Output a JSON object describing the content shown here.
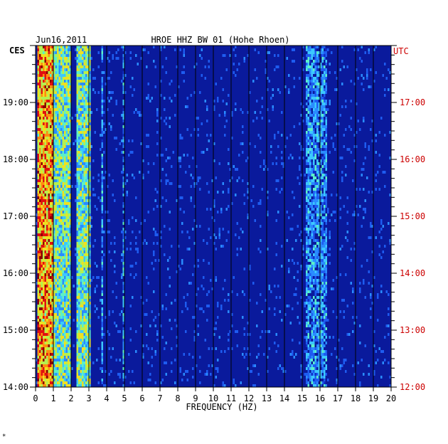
{
  "chart_data": {
    "type": "heatmap",
    "title": "HROE HHZ BW 01 (Hohe Rhoen)",
    "date": "Jun16,2011",
    "xlabel": "FREQUENCY (HZ)",
    "left_axis_label": "CES",
    "right_axis_label": "UTC",
    "xlim": [
      0,
      20
    ],
    "x_ticks": [
      "0",
      "1",
      "2",
      "3",
      "4",
      "5",
      "6",
      "7",
      "8",
      "9",
      "10",
      "11",
      "12",
      "13",
      "14",
      "15",
      "16",
      "17",
      "18",
      "19",
      "20"
    ],
    "left_ticks": [
      "14:00",
      "15:00",
      "16:00",
      "17:00",
      "18:00",
      "19:00"
    ],
    "right_ticks": [
      "12:00",
      "13:00",
      "14:00",
      "15:00",
      "16:00",
      "17:00"
    ],
    "y_range_hours_utc": [
      12,
      18
    ],
    "colors": {
      "background": "#0a1a9c",
      "grid": "#000000",
      "utc_text": "#cc0000",
      "axis_text": "#000000"
    },
    "energy_bands_hz": [
      {
        "from": 0.1,
        "to": 1.0,
        "level": "high"
      },
      {
        "from": 1.0,
        "to": 2.0,
        "level": "medium"
      },
      {
        "from": 2.3,
        "to": 3.1,
        "level": "medium"
      },
      {
        "from": 3.7,
        "to": 3.8,
        "level": "low"
      },
      {
        "from": 4.9,
        "to": 5.0,
        "level": "low"
      },
      {
        "from": 15.2,
        "to": 16.4,
        "level": "low"
      }
    ],
    "footnote": "*"
  }
}
